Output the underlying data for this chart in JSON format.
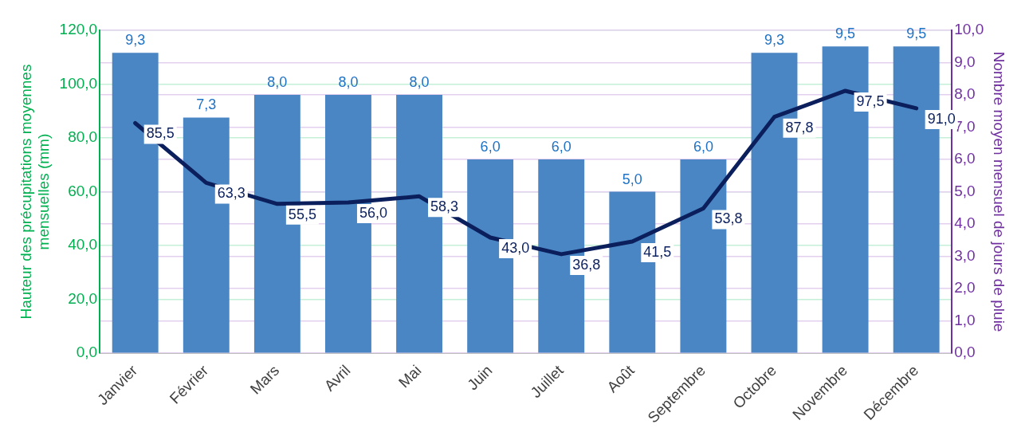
{
  "chart_data": {
    "type": "bar",
    "categories": [
      "Janvier",
      "Février",
      "Mars",
      "Avril",
      "Mai",
      "Juin",
      "Juillet",
      "Août",
      "Septembre",
      "Octobre",
      "Novembre",
      "Décembre"
    ],
    "series": [
      {
        "axis": "y2",
        "color": "#4a86c4",
        "values": [
          9.3,
          7.3,
          8.0,
          8.0,
          8.0,
          6.0,
          6.0,
          5.0,
          6.0,
          9.3,
          9.5,
          9.5
        ],
        "value_labels": [
          "9,3",
          "7,3",
          "8,0",
          "8,0",
          "8,0",
          "6,0",
          "6,0",
          "5,0",
          "6,0",
          "9,3",
          "9,5",
          "9,5"
        ]
      },
      {
        "type": "line",
        "color": "#0b1f5c",
        "values": [
          85.5,
          63.3,
          55.5,
          56.0,
          58.3,
          43.0,
          36.8,
          41.5,
          53.8,
          87.8,
          97.5,
          91.0
        ],
        "value_labels": [
          "85,5",
          "63,3",
          "55,5",
          "56,0",
          "58,3",
          "43,0",
          "36,8",
          "41,5",
          "53,8",
          "87,8",
          "97,5",
          "91,0"
        ]
      }
    ],
    "ylabel": "Hauteur des précupitations moyennes mensuelles (mm)",
    "y2label": "Nombre moyen mensuel de jours de pluie",
    "ylim": [
      0,
      120
    ],
    "yticks": [
      {
        "value": 0,
        "label": "0,0"
      },
      {
        "value": 20,
        "label": "20,0"
      },
      {
        "value": 40,
        "label": "40,0"
      },
      {
        "value": 60,
        "label": "60,0"
      },
      {
        "value": 80,
        "label": "80,0"
      },
      {
        "value": 100,
        "label": "100,0"
      },
      {
        "value": 120,
        "label": "120,0"
      }
    ],
    "y2lim": [
      0,
      10
    ],
    "y2ticks": [
      {
        "value": 0,
        "label": "0,0"
      },
      {
        "value": 1,
        "label": "1,0"
      },
      {
        "value": 2,
        "label": "2,0"
      },
      {
        "value": 3,
        "label": "3,0"
      },
      {
        "value": 4,
        "label": "4,0"
      },
      {
        "value": 5,
        "label": "5,0"
      },
      {
        "value": 6,
        "label": "6,0"
      },
      {
        "value": 7,
        "label": "7,0"
      },
      {
        "value": 8,
        "label": "8,0"
      },
      {
        "value": 9,
        "label": "9,0"
      },
      {
        "value": 10,
        "label": "10,0"
      }
    ],
    "grid": true,
    "legend": false,
    "marker": "none",
    "line_style": "solid"
  }
}
